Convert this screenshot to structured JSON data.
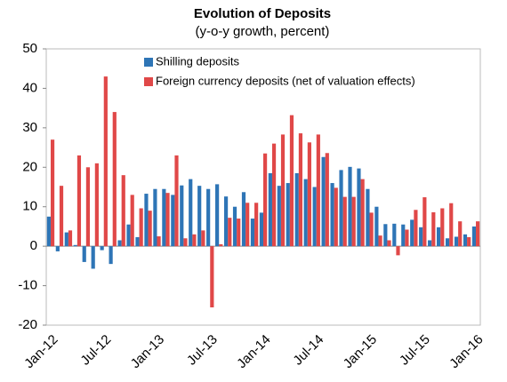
{
  "chart_data": {
    "type": "bar",
    "title": "Evolution of Deposits",
    "subtitle": "(y-o-y growth, percent)",
    "categories": [
      "Jan-12",
      null,
      null,
      null,
      null,
      null,
      "Jul-12",
      null,
      null,
      null,
      null,
      null,
      "Jan-13",
      null,
      null,
      null,
      null,
      null,
      "Jul-13",
      null,
      null,
      null,
      null,
      null,
      "Jan-14",
      null,
      null,
      null,
      null,
      null,
      "Jul-14",
      null,
      null,
      null,
      null,
      null,
      "Jan-15",
      null,
      null,
      null,
      null,
      null,
      "Jul-15",
      null,
      null,
      null,
      null,
      null,
      "Jan-16"
    ],
    "series": [
      {
        "name": "Shilling deposits",
        "color": "#2e75b6",
        "values": [
          7.5,
          -1.3,
          3.5,
          0.3,
          -4,
          -5.7,
          -1,
          -4.5,
          1.5,
          5.5,
          2.3,
          13.3,
          14.5,
          14.5,
          13,
          15.4,
          17,
          15.3,
          14.5,
          15.7,
          12.6,
          10,
          13.7,
          7,
          8.5,
          18.5,
          15.3,
          16,
          18.5,
          17,
          15,
          22.6,
          16,
          19.3,
          20.1,
          19.7,
          14.5,
          10,
          5.6,
          5.7,
          5.5,
          6.7,
          4.8,
          1.5,
          4.8,
          2,
          2.4,
          3,
          5
        ]
      },
      {
        "name": "Foreign currency deposits (net of valuation effects)",
        "color": "#e04848",
        "values": [
          27,
          15.3,
          4,
          23,
          20,
          21,
          43,
          34,
          18,
          13,
          9.6,
          9,
          2.5,
          13.5,
          23,
          2,
          3,
          4,
          -15.5,
          0.5,
          7.2,
          7,
          11,
          11,
          23.5,
          26,
          28.3,
          33.2,
          28.6,
          26.3,
          28.3,
          23.6,
          14.8,
          12.5,
          12.5,
          17,
          8.5,
          2.7,
          1.5,
          -2.3,
          4.2,
          9.2,
          12.4,
          8.6,
          9.6,
          10.9,
          6.3,
          2.3,
          6.3
        ]
      }
    ],
    "ylim": [
      -20,
      50
    ],
    "yticks": [
      -20,
      -10,
      0,
      10,
      20,
      30,
      40,
      50
    ],
    "grid": false
  }
}
